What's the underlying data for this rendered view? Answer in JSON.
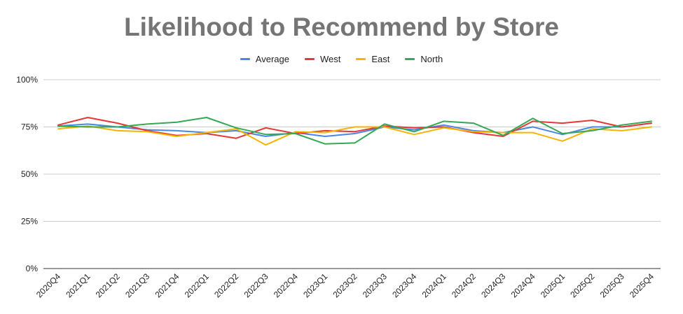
{
  "chart_data": {
    "type": "line",
    "title": "Likelihood to Recommend by Store",
    "xlabel": "",
    "ylabel": "",
    "ylim": [
      0,
      100
    ],
    "y_ticks": [
      "0%",
      "25%",
      "50%",
      "75%",
      "100%"
    ],
    "y_tick_values": [
      0,
      25,
      50,
      75,
      100
    ],
    "grid": true,
    "legend_position": "top",
    "categories": [
      "2020Q4",
      "2021Q1",
      "2021Q2",
      "2021Q3",
      "2021Q4",
      "2022Q1",
      "2022Q2",
      "2022Q3",
      "2022Q4",
      "2023Q1",
      "2023Q2",
      "2023Q3",
      "2023Q4",
      "2024Q1",
      "2024Q2",
      "2024Q3",
      "2024Q4",
      "2025Q1",
      "2025Q2",
      "2025Q3",
      "2025Q4"
    ],
    "series": [
      {
        "name": "Average",
        "color": "#4a86e8",
        "values": [
          75.5,
          76.5,
          75,
          73.5,
          73,
          72,
          73,
          70,
          72,
          70,
          71.5,
          75,
          73.5,
          76,
          73,
          72,
          75,
          71,
          75,
          75,
          77
        ]
      },
      {
        "name": "West",
        "color": "#e53935",
        "values": [
          76,
          80,
          77,
          73,
          70.5,
          71.5,
          69,
          74.5,
          71.5,
          73,
          72.5,
          75.5,
          74.5,
          75,
          72,
          70,
          78,
          77,
          78.5,
          75,
          77
        ]
      },
      {
        "name": "East",
        "color": "#f4b400",
        "values": [
          74,
          75.5,
          73,
          72.5,
          70,
          72,
          74,
          65.5,
          72.5,
          72,
          75,
          75,
          71,
          74.5,
          72.5,
          72,
          72,
          67.5,
          74,
          73,
          75
        ]
      },
      {
        "name": "North",
        "color": "#34a853",
        "values": [
          75.5,
          75,
          75,
          76.5,
          77.5,
          80,
          74.5,
          71,
          71.5,
          66,
          66.5,
          76.5,
          72.5,
          78,
          77,
          70.5,
          79.5,
          71.5,
          73,
          76,
          78
        ]
      }
    ]
  }
}
